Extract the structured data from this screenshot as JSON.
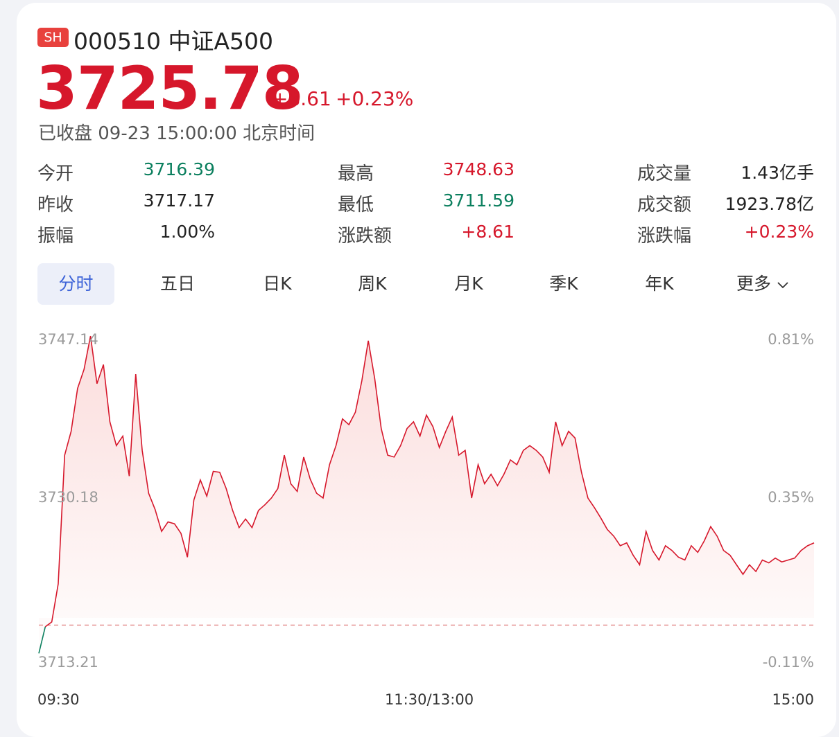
{
  "header": {
    "market": "SH",
    "code_name": "000510 中证A500",
    "price": "3725.78",
    "change": "+8.61",
    "change_pct": "+0.23%",
    "status": "已收盘 09-23 15:00:00 北京时间"
  },
  "quote": {
    "open_label": "今开",
    "open": "3716.39",
    "prev_close_label": "昨收",
    "prev_close": "3717.17",
    "amplitude_label": "振幅",
    "amplitude": "1.00%",
    "high_label": "最高",
    "high": "3748.63",
    "low_label": "最低",
    "low": "3711.59",
    "chg_label": "涨跌额",
    "chg": "+8.61",
    "volume_label": "成交量",
    "volume": "1.43亿手",
    "turnover_label": "成交额",
    "turnover": "1923.78亿",
    "chg_pct_label": "涨跌幅",
    "chg_pct": "+0.23%"
  },
  "tabs": [
    "分时",
    "五日",
    "日K",
    "周K",
    "月K",
    "季K",
    "年K",
    "更多"
  ],
  "colors": {
    "up": "#d6172b",
    "down": "#0b7f5e",
    "accent": "#3d63d8"
  },
  "chart_data": {
    "type": "line",
    "y_left_ticks": [
      "3747.14",
      "3730.18",
      "3713.21"
    ],
    "y_right_ticks": [
      "0.81%",
      "0.35%",
      "-0.11%"
    ],
    "x_ticks": [
      "09:30",
      "11:30/13:00",
      "15:00"
    ],
    "ylim": [
      3713.21,
      3747.14
    ],
    "reference": 3717.17,
    "x": [
      0,
      2,
      4,
      6,
      8,
      10,
      12,
      14,
      16,
      18,
      20,
      22,
      24,
      26,
      28,
      30,
      32,
      34,
      36,
      38,
      40,
      42,
      44,
      46,
      48,
      50,
      52,
      54,
      56,
      58,
      60,
      62,
      64,
      66,
      68,
      70,
      72,
      74,
      76,
      78,
      80,
      82,
      84,
      86,
      88,
      90,
      92,
      94,
      96,
      98,
      100,
      102,
      104,
      106,
      108,
      110,
      112,
      114,
      116,
      118,
      120,
      122,
      124,
      126,
      128,
      130,
      132,
      134,
      136,
      138,
      140,
      142,
      144,
      146,
      148,
      150,
      152,
      154,
      156,
      158,
      160,
      162,
      164,
      166,
      168,
      170,
      172,
      174,
      176,
      178,
      180,
      182,
      184,
      186,
      188,
      190,
      192,
      194,
      196,
      198,
      200,
      202,
      204,
      206,
      208,
      210,
      212,
      214,
      216,
      218,
      220,
      222,
      224,
      226,
      228,
      230,
      232,
      234,
      236,
      238,
      240
    ],
    "values": [
      3714.2,
      3717.0,
      3717.5,
      3721.5,
      3735.0,
      3737.5,
      3742.0,
      3744.0,
      3747.5,
      3742.5,
      3744.5,
      3738.5,
      3736.0,
      3737.0,
      3732.8,
      3743.5,
      3735.5,
      3731.0,
      3729.3,
      3727.0,
      3728.0,
      3727.8,
      3726.8,
      3724.3,
      3730.3,
      3732.4,
      3730.7,
      3733.3,
      3733.2,
      3731.5,
      3729.2,
      3727.4,
      3728.3,
      3727.4,
      3729.2,
      3729.8,
      3730.5,
      3731.5,
      3735.0,
      3732.0,
      3731.2,
      3734.8,
      3732.5,
      3731.0,
      3730.5,
      3734.0,
      3736.0,
      3738.8,
      3738.2,
      3739.5,
      3742.8,
      3747.0,
      3743.0,
      3737.8,
      3735.0,
      3734.8,
      3736.0,
      3737.8,
      3738.5,
      3737.0,
      3739.2,
      3738.0,
      3735.8,
      3737.5,
      3739.0,
      3735.0,
      3735.5,
      3730.5,
      3734.0,
      3732.0,
      3733.0,
      3731.8,
      3733.0,
      3734.5,
      3734.0,
      3735.5,
      3736.0,
      3735.5,
      3734.8,
      3733.2,
      3738.5,
      3736.0,
      3737.5,
      3736.8,
      3733.2,
      3730.5,
      3729.5,
      3728.4,
      3727.2,
      3726.5,
      3725.5,
      3725.8,
      3724.5,
      3723.5,
      3727.0,
      3725.0,
      3724.0,
      3725.5,
      3725.0,
      3724.3,
      3724.0,
      3725.5,
      3724.8,
      3726.0,
      3727.5,
      3726.5,
      3725.0,
      3724.5,
      3723.5,
      3722.5,
      3723.5,
      3722.8,
      3724.0,
      3723.7,
      3724.2,
      3723.8,
      3724.0,
      3724.2,
      3725.0,
      3725.5,
      3725.8
    ]
  }
}
